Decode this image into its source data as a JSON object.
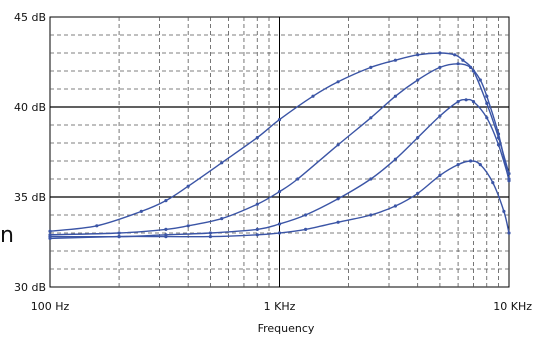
{
  "chart_data": {
    "type": "line",
    "title": "",
    "xlabel": "Frequency",
    "ylabel": "",
    "x_scale": "log",
    "xlim": [
      100,
      10000
    ],
    "ylim": [
      30,
      45
    ],
    "x_ticks": [
      {
        "value": 100,
        "label": "100 Hz"
      },
      {
        "value": 1000,
        "label": "1 KHz"
      },
      {
        "value": 10000,
        "label": "10 KHz"
      }
    ],
    "y_ticks": [
      {
        "value": 30,
        "label": "30 dB"
      },
      {
        "value": 35,
        "label": "35 dB"
      },
      {
        "value": 40,
        "label": "40 dB"
      },
      {
        "value": 45,
        "label": "45 dB"
      }
    ],
    "grid": true,
    "color": "#3b55a6",
    "series": [
      {
        "x": [
          100,
          160,
          250,
          320,
          400,
          560,
          800,
          1000,
          1400,
          1800,
          2500,
          3200,
          4000,
          5000,
          5800,
          6300,
          7000,
          8000,
          9000,
          10000
        ],
        "y": [
          33.1,
          33.4,
          34.2,
          34.8,
          35.6,
          36.9,
          38.3,
          39.3,
          40.6,
          41.4,
          42.2,
          42.6,
          42.9,
          43.0,
          42.9,
          42.6,
          42.0,
          40.2,
          38.3,
          36.3
        ]
      },
      {
        "x": [
          100,
          200,
          320,
          400,
          560,
          800,
          1000,
          1200,
          1800,
          2500,
          3200,
          4000,
          5000,
          6000,
          6800,
          7500,
          8000,
          9000,
          10000
        ],
        "y": [
          32.9,
          33.0,
          33.2,
          33.4,
          33.8,
          34.6,
          35.3,
          36.0,
          37.9,
          39.4,
          40.6,
          41.5,
          42.2,
          42.4,
          42.2,
          41.5,
          40.6,
          38.5,
          35.9
        ]
      },
      {
        "x": [
          100,
          200,
          320,
          500,
          800,
          1000,
          1300,
          1800,
          2500,
          3200,
          4000,
          5000,
          6000,
          6500,
          7000,
          8000,
          9000,
          10000
        ],
        "y": [
          32.8,
          32.8,
          32.9,
          33.0,
          33.2,
          33.5,
          34.0,
          34.9,
          36.0,
          37.1,
          38.3,
          39.5,
          40.3,
          40.4,
          40.3,
          39.4,
          37.9,
          36.0
        ]
      },
      {
        "x": [
          100,
          200,
          320,
          500,
          800,
          1000,
          1300,
          1800,
          2500,
          3200,
          4000,
          5000,
          6000,
          6800,
          7500,
          8500,
          9500,
          10000
        ],
        "y": [
          32.7,
          32.8,
          32.8,
          32.8,
          32.9,
          33.0,
          33.2,
          33.6,
          34.0,
          34.5,
          35.2,
          36.2,
          36.8,
          37.0,
          36.8,
          35.8,
          34.2,
          33.0
        ]
      }
    ]
  },
  "side_fragment": "n"
}
